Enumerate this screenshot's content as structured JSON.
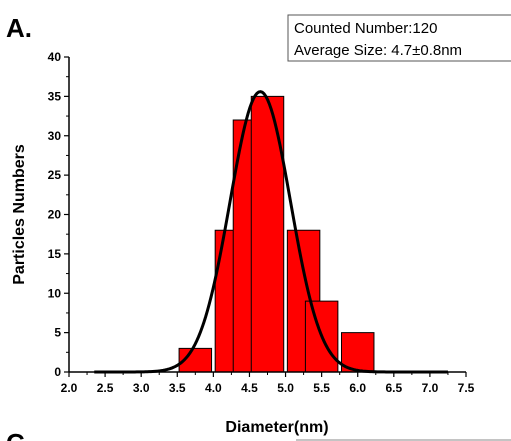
{
  "panel_label": "A.",
  "next_panel_label": "C",
  "info_box": {
    "line1": "Counted Number:120",
    "line2": "Average Size:  4.7±0.8nm"
  },
  "colors": {
    "bar_fill": "#ff0000",
    "bar_stroke": "#000000",
    "fit_curve": "#000000"
  },
  "chart_data": {
    "type": "bar",
    "xlabel": "Diameter(nm)",
    "ylabel": "Particles Numbers",
    "xlim": [
      2.0,
      7.5
    ],
    "ylim": [
      0,
      40
    ],
    "x_ticks": [
      "2.0",
      "2.5",
      "3.0",
      "3.5",
      "4.0",
      "4.5",
      "5.0",
      "5.5",
      "6.0",
      "6.5",
      "7.0",
      "7.5"
    ],
    "y_ticks": [
      "0",
      "5",
      "10",
      "15",
      "20",
      "25",
      "30",
      "35",
      "40"
    ],
    "bin_width": 0.5,
    "bars": [
      {
        "center": 3.75,
        "value": 3
      },
      {
        "center": 4.25,
        "value": 18
      },
      {
        "center": 4.5,
        "value": 32
      },
      {
        "center": 4.75,
        "value": 35
      },
      {
        "center": 5.25,
        "value": 18
      },
      {
        "center": 5.5,
        "value": 9
      },
      {
        "center": 6.0,
        "value": 5
      }
    ],
    "fit": {
      "type": "gaussian",
      "mean": 4.65,
      "sigma": 0.42,
      "peak": 35.6,
      "x_range": [
        2.35,
        7.25
      ]
    },
    "grid": false
  }
}
